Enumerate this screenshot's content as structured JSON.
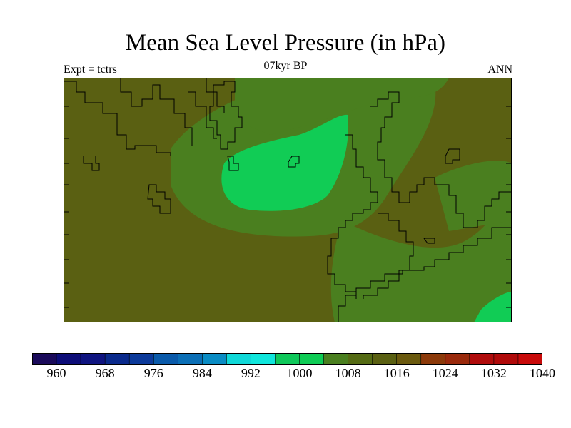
{
  "title": "Mean Sea Level Pressure (in hPa)",
  "subtitle": "07kyr BP",
  "experiment_label": "Expt = tctrs",
  "season_label": "ANN",
  "colorbar": {
    "colors": [
      "#1a0a5a",
      "#0d0d78",
      "#0f1480",
      "#0a2a8c",
      "#0c3a9a",
      "#0a5aaa",
      "#0b6fb6",
      "#0a8cc4",
      "#10d8d8",
      "#10e6dc",
      "#0fc85a",
      "#0fcc55",
      "#4a7f1f",
      "#556b14",
      "#5a6012",
      "#6b5a0f",
      "#8c3a0a",
      "#9a2a0c",
      "#b00c0c",
      "#b00a0a",
      "#c80a0a"
    ],
    "labels": [
      "960",
      "968",
      "976",
      "984",
      "992",
      "1000",
      "1008",
      "1016",
      "1024",
      "1032",
      "1040"
    ]
  },
  "map_colors": {
    "background": "#5a6012",
    "mid_band": "#4a7f1f",
    "low_core": "#11cc55",
    "coast_line": "#000000"
  }
}
